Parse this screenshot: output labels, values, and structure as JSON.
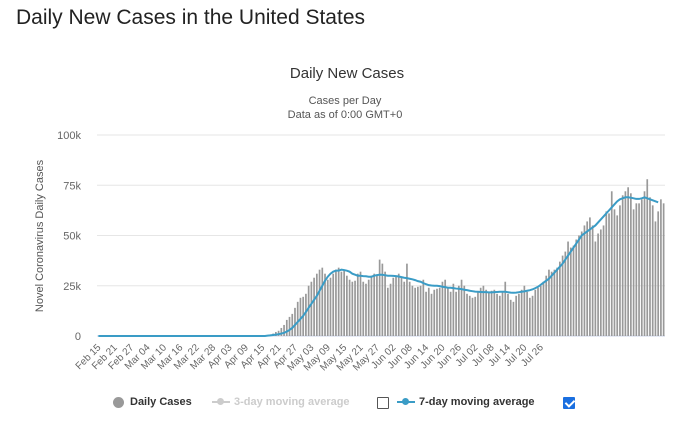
{
  "page": {
    "heading": "Daily New Cases in the United States"
  },
  "chart_data": {
    "type": "bar",
    "title": "Daily New Cases",
    "subtitle_line1": "Cases per Day",
    "subtitle_line2": "Data as of 0:00 GMT+0",
    "ylabel": "Novel Coronavirus Daily Cases",
    "xlabel": "",
    "ylim": [
      0,
      100000
    ],
    "yticks": [
      0,
      25000,
      50000,
      75000,
      100000
    ],
    "ytick_labels": [
      "0",
      "25k",
      "50k",
      "75k",
      "100k"
    ],
    "grid": true,
    "legend_position": "bottom",
    "start_date": "Feb 15",
    "x_tick_labels": [
      "Feb 15",
      "Feb 21",
      "Feb 27",
      "Mar 04",
      "Mar 10",
      "Mar 16",
      "Mar 22",
      "Mar 28",
      "Apr 03",
      "Apr 09",
      "Apr 15",
      "Apr 21",
      "Apr 27",
      "May 03",
      "May 09",
      "May 15",
      "May 21",
      "May 27",
      "Jun 02",
      "Jun 08",
      "Jun 14",
      "Jun 20",
      "Jun 26",
      "Jul 02",
      "Jul 08",
      "Jul 14",
      "Jul 20",
      "Jul 26"
    ],
    "x_tick_step_days": 6,
    "colors": {
      "bars": "#999999",
      "moving_average": "#3a9cc6",
      "disabled": "#cccccc",
      "checkbox": "#1a6fe0"
    },
    "series": [
      {
        "name": "Daily Cases",
        "type": "bar",
        "values": [
          0,
          0,
          0,
          0,
          0,
          0,
          0,
          0,
          0,
          0,
          0,
          0,
          0,
          0,
          0,
          0,
          0,
          0,
          0,
          0,
          0,
          0,
          0,
          0,
          0,
          0,
          0,
          0,
          0,
          0,
          0,
          0,
          0,
          0,
          0,
          0,
          0,
          0,
          0,
          0,
          0,
          0,
          0,
          0,
          0,
          0,
          0,
          0,
          0,
          0,
          0,
          0,
          0,
          0,
          0,
          0,
          0,
          0,
          100,
          100,
          200,
          300,
          500,
          800,
          1200,
          2000,
          2600,
          4000,
          5500,
          8000,
          9500,
          11000,
          14000,
          17000,
          19000,
          19500,
          21000,
          25000,
          27000,
          29000,
          31000,
          33000,
          34000,
          31000,
          28000,
          29000,
          31000,
          33000,
          34000,
          32000,
          33000,
          30000,
          28000,
          27000,
          27500,
          31000,
          32000,
          27000,
          26000,
          28000,
          30000,
          31000,
          30000,
          38000,
          36000,
          32000,
          24000,
          26000,
          29000,
          30000,
          31000,
          29000,
          27000,
          36000,
          27000,
          25000,
          24000,
          24500,
          25000,
          28000,
          22000,
          24000,
          21000,
          23000,
          23500,
          24000,
          27000,
          28000,
          24000,
          22000,
          26000,
          22000,
          25000,
          28000,
          25000,
          21000,
          20000,
          19000,
          19500,
          22000,
          24000,
          25000,
          23000,
          22000,
          22500,
          23000,
          21000,
          20000,
          22000,
          27000,
          21000,
          18000,
          17000,
          20000,
          21000,
          23000,
          25000,
          22000,
          19000,
          20000,
          23000,
          24000,
          25000,
          27000,
          30000,
          33000,
          32000,
          33000,
          34000,
          37000,
          40000,
          42000,
          47000,
          44000,
          45000,
          48000,
          50000,
          52000,
          55000,
          57000,
          59000,
          55000,
          47000,
          51000,
          53000,
          55000,
          62000,
          61000,
          72000,
          63000,
          60000,
          65000,
          70000,
          72000,
          74000,
          71000,
          63000,
          66000,
          66000,
          68000,
          72000,
          78000,
          69000,
          65000,
          57000,
          62000,
          68000,
          66000
        ]
      },
      {
        "name": "3-day moving average",
        "type": "line",
        "enabled": false
      },
      {
        "name": "7-day moving average",
        "type": "line",
        "enabled": true,
        "values": [
          0,
          0,
          0,
          0,
          0,
          0,
          0,
          0,
          0,
          0,
          0,
          0,
          0,
          0,
          0,
          0,
          0,
          0,
          0,
          0,
          0,
          0,
          0,
          0,
          0,
          0,
          0,
          0,
          0,
          0,
          0,
          0,
          0,
          0,
          0,
          0,
          0,
          0,
          0,
          0,
          0,
          0,
          0,
          0,
          0,
          0,
          0,
          0,
          0,
          0,
          0,
          0,
          0,
          0,
          0,
          0,
          0,
          0,
          0,
          0,
          0,
          0,
          200,
          300,
          500,
          700,
          900,
          1200,
          1600,
          2200,
          3000,
          4000,
          5500,
          7000,
          8500,
          10000,
          12000,
          14000,
          16000,
          18000,
          20000,
          22500,
          25000,
          27500,
          29500,
          31000,
          32000,
          32500,
          32500,
          33000,
          32800,
          32500,
          32000,
          31000,
          30500,
          30000,
          30000,
          29800,
          29700,
          29500,
          29500,
          30000,
          30300,
          30500,
          30500,
          30200,
          30000,
          30000,
          29900,
          29800,
          29600,
          29300,
          29000,
          28800,
          28500,
          28200,
          27800,
          27300,
          27000,
          26300,
          25800,
          25300,
          25100,
          25000,
          25000,
          24800,
          24500,
          24300,
          24000,
          24000,
          23800,
          23600,
          23500,
          23300,
          23000,
          22800,
          22500,
          22300,
          22100,
          22000,
          21900,
          21800,
          21800,
          21700,
          21700,
          21800,
          21900,
          22000,
          22000,
          22000,
          21800,
          21600,
          21500,
          21600,
          21800,
          22000,
          22200,
          22500,
          22800,
          23200,
          23800,
          24500,
          25500,
          26500,
          27500,
          28500,
          30000,
          31500,
          33000,
          34500,
          36000,
          38000,
          40000,
          42000,
          44000,
          46000,
          48000,
          50000,
          51000,
          52000,
          53000,
          54000,
          55000,
          56500,
          58000,
          59500,
          61000,
          62500,
          64000,
          65500,
          67000,
          68000,
          68500,
          69000,
          69000,
          68800,
          68500,
          68200,
          68200,
          68500,
          69000,
          68500,
          68000,
          67500,
          67000,
          66500
        ]
      }
    ]
  },
  "legend": [
    {
      "label": "Daily Cases",
      "enabled": true
    },
    {
      "label": "3-day moving average",
      "enabled": false
    },
    {
      "label": "7-day moving average",
      "enabled": true
    }
  ]
}
